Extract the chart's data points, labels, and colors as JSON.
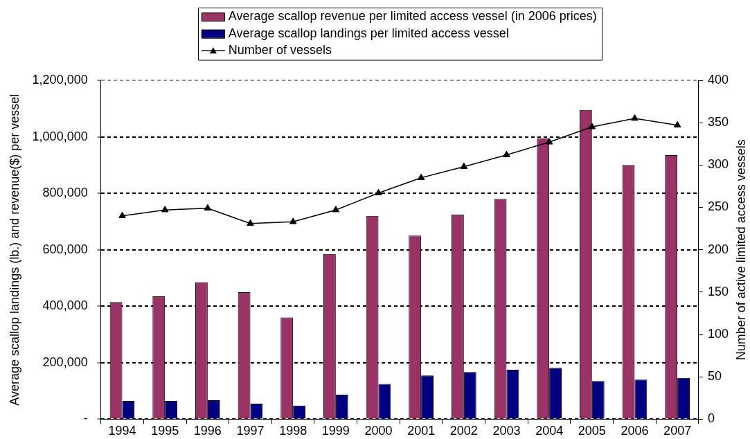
{
  "chart_data": {
    "type": "bar",
    "categories": [
      "1994",
      "1995",
      "1996",
      "1997",
      "1998",
      "1999",
      "2000",
      "2001",
      "2002",
      "2003",
      "2004",
      "2005",
      "2006",
      "2007"
    ],
    "ylabel": "Average scallop landings (lb.) and revenue($) per vessel",
    "y2label": "Number of active limited access vessels",
    "ylim": [
      0,
      1200000
    ],
    "yticks": [
      {
        "value": 0,
        "label": "-"
      },
      {
        "value": 200000,
        "label": "200,000"
      },
      {
        "value": 400000,
        "label": "400,000"
      },
      {
        "value": 600000,
        "label": "600,000"
      },
      {
        "value": 800000,
        "label": "800,000"
      },
      {
        "value": 1000000,
        "label": "1,000,000"
      },
      {
        "value": 1200000,
        "label": "1,200,000"
      }
    ],
    "y2lim": [
      0,
      400
    ],
    "y2ticks": [
      0,
      50,
      100,
      150,
      200,
      250,
      300,
      350,
      400
    ],
    "grid": "y",
    "legend": "top",
    "series": [
      {
        "name": "Average scallop revenue per limited access vessel (in 2006 prices)",
        "color": "#993366",
        "values": [
          415000,
          435000,
          485000,
          450000,
          360000,
          585000,
          720000,
          650000,
          725000,
          780000,
          995000,
          1095000,
          900000,
          935000
        ]
      },
      {
        "name": "Average scallop landings per limited access vessel",
        "color": "#000080",
        "values": [
          65000,
          65000,
          67000,
          55000,
          48000,
          87000,
          125000,
          155000,
          167000,
          175000,
          182000,
          135000,
          140000,
          146000
        ]
      },
      {
        "name": "Number of vessels",
        "type": "line",
        "axis": "y2",
        "color": "#000000",
        "marker": "triangle",
        "values": [
          240,
          247,
          249,
          231,
          233,
          247,
          267,
          285,
          298,
          312,
          327,
          345,
          355,
          347
        ]
      }
    ]
  }
}
